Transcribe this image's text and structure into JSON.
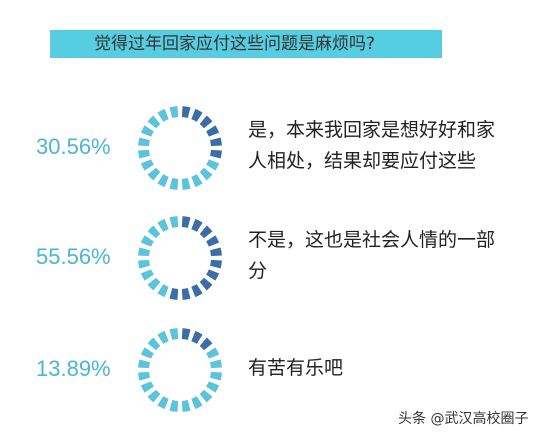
{
  "chart_data": {
    "type": "segmented-ring",
    "title": "觉得过年回家应付这些问题是麻烦吗?",
    "categories": [
      "是，本来我回家是想好好和家人相处，结果却要应付这些",
      "不是，这也是社会人情的一部分",
      "有苦有乐吧"
    ],
    "values": [
      30.56,
      55.56,
      13.89
    ],
    "value_labels": [
      "30.56%",
      "55.56%",
      "13.89%"
    ],
    "color": "#3b6ea5",
    "track_color": "#5bc3dc",
    "watermark": "头条 @武汉高校圈子"
  }
}
